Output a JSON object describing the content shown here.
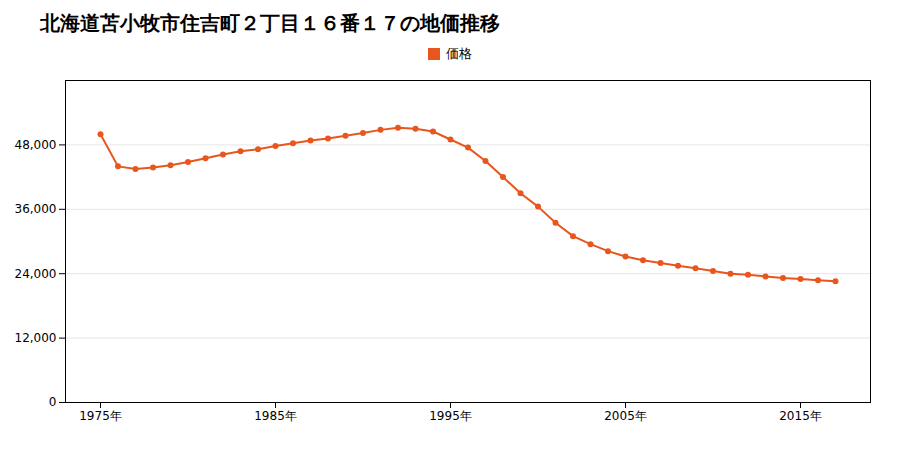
{
  "chart_data": {
    "type": "line",
    "title": "北海道苫小牧市住吉町２丁目１６番１７の地価推移",
    "x": [
      1975,
      1976,
      1977,
      1978,
      1979,
      1980,
      1981,
      1982,
      1983,
      1984,
      1985,
      1986,
      1987,
      1988,
      1989,
      1990,
      1991,
      1992,
      1993,
      1994,
      1995,
      1996,
      1997,
      1998,
      1999,
      2000,
      2001,
      2002,
      2003,
      2004,
      2005,
      2006,
      2007,
      2008,
      2009,
      2010,
      2011,
      2012,
      2013,
      2014,
      2015,
      2016,
      2017
    ],
    "series": [
      {
        "name": "価格",
        "color": "#e8561e",
        "marker": "circle",
        "values": [
          50000,
          44000,
          43500,
          43800,
          44200,
          44800,
          45500,
          46200,
          46800,
          47200,
          47800,
          48300,
          48800,
          49200,
          49700,
          50200,
          50800,
          51200,
          51000,
          50500,
          49000,
          47500,
          45000,
          42000,
          39000,
          36500,
          33500,
          31000,
          29500,
          28200,
          27200,
          26500,
          26000,
          25500,
          25000,
          24500,
          24000,
          23800,
          23500,
          23200,
          23000,
          22800,
          22600
        ]
      }
    ],
    "xlim": [
      1973,
      2019
    ],
    "xticks": [
      {
        "value": 1975,
        "label": "1975年"
      },
      {
        "value": 1985,
        "label": "1985年"
      },
      {
        "value": 1995,
        "label": "1995年"
      },
      {
        "value": 2005,
        "label": "2005年"
      },
      {
        "value": 2015,
        "label": "2015年"
      }
    ],
    "ylim": [
      0,
      60000
    ],
    "yticks": [
      0,
      {
        "value": 12000,
        "label": "12,000"
      },
      {
        "value": 24000,
        "label": "24,000"
      },
      {
        "value": 36000,
        "label": "36,000"
      },
      {
        "value": 48000,
        "label": "48,000"
      }
    ],
    "grid": true
  }
}
